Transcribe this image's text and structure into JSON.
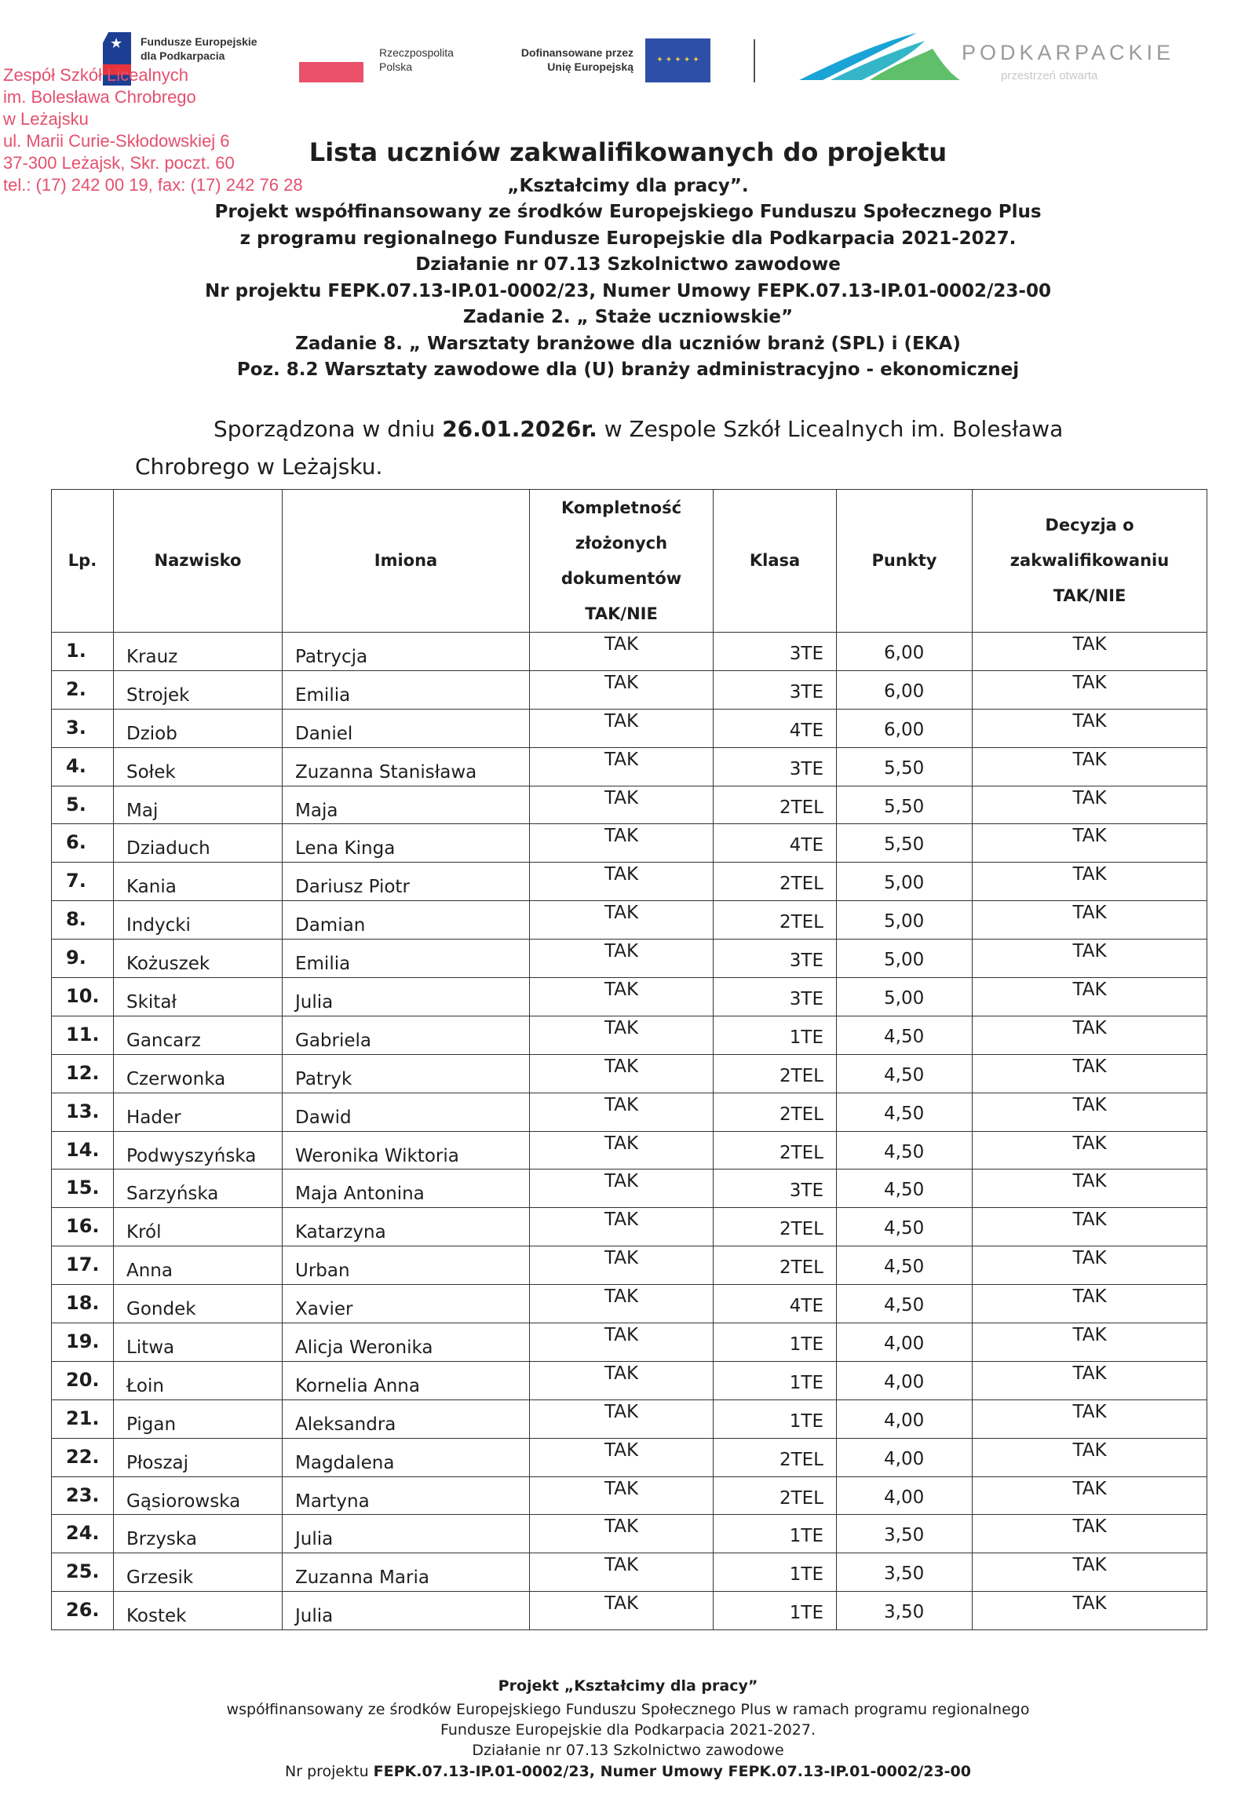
{
  "logos": {
    "fe_line1": "Fundusze Europejskie",
    "fe_line2": "dla Podkarpacia",
    "rp_line1": "Rzeczpospolita",
    "rp_line2": "Polska",
    "eu_line1": "Dofinansowane przez",
    "eu_line2": "Unię Europejską",
    "region": "PODKARPACKIE",
    "region_tagline": "przestrzeń otwarta"
  },
  "stamp": [
    "Zespół Szkół Licealnych",
    "im. Bolesława Chrobrego",
    "w Leżajsku",
    "ul. Marii Curie-Skłodowskiej 6",
    "37-300 Leżajsk, Skr. poczt. 60",
    "tel.: (17) 242 00 19, fax: (17) 242 76 28"
  ],
  "header": {
    "title": "Lista uczniów zakwalifikowanych do projektu",
    "lines": [
      "„Kształcimy dla pracy”.",
      "Projekt współfinansowany ze środków Europejskiego Funduszu Społecznego Plus",
      "z programu regionalnego Fundusze Europejskie dla Podkarpacia 2021-2027.",
      "Działanie nr 07.13 Szkolnictwo zawodowe",
      "Nr projektu  FEPK.07.13-IP.01-0002/23, Numer Umowy FEPK.07.13-IP.01-0002/23-00",
      "Zadanie 2. „ Staże uczniowskie”",
      "Zadanie 8. „ Warsztaty branżowe dla uczniów branż (SPL) i (EKA)",
      "Poz. 8.2 Warsztaty zawodowe dla (U) branży administracyjno - ekonomicznej"
    ]
  },
  "prepared": {
    "prefix": "Sporządzona w dniu ",
    "date": "26.01.2026r.",
    "suffix": " w Zespole Szkół Licealnych im. Bolesława",
    "line2": "Chrobrego w Leżajsku."
  },
  "table": {
    "columns": [
      "Lp.",
      "Nazwisko",
      "Imiona",
      "Kompletność złożonych dokumentów TAK/NIE",
      "Klasa",
      "Punkty",
      "Decyzja o zakwalifikowaniu TAK/NIE"
    ],
    "rows": [
      [
        "1.",
        "Krauz",
        "Patrycja",
        "TAK",
        "3TE",
        "6,00",
        "TAK"
      ],
      [
        "2.",
        "Strojek",
        "Emilia",
        "TAK",
        "3TE",
        "6,00",
        "TAK"
      ],
      [
        "3.",
        "Dziob",
        "Daniel",
        "TAK",
        "4TE",
        "6,00",
        "TAK"
      ],
      [
        "4.",
        "Sołek",
        "Zuzanna Stanisława",
        "TAK",
        "3TE",
        "5,50",
        "TAK"
      ],
      [
        "5.",
        "Maj",
        "Maja",
        "TAK",
        "2TEL",
        "5,50",
        "TAK"
      ],
      [
        "6.",
        "Dziaduch",
        "Lena Kinga",
        "TAK",
        "4TE",
        "5,50",
        "TAK"
      ],
      [
        "7.",
        "Kania",
        "Dariusz Piotr",
        "TAK",
        "2TEL",
        "5,00",
        "TAK"
      ],
      [
        "8.",
        "Indycki",
        "Damian",
        "TAK",
        "2TEL",
        "5,00",
        "TAK"
      ],
      [
        "9.",
        "Kożuszek",
        "Emilia",
        "TAK",
        "3TE",
        "5,00",
        "TAK"
      ],
      [
        "10.",
        "Skitał",
        "Julia",
        "TAK",
        "3TE",
        "5,00",
        "TAK"
      ],
      [
        "11.",
        "Gancarz",
        "Gabriela",
        "TAK",
        "1TE",
        "4,50",
        "TAK"
      ],
      [
        "12.",
        "Czerwonka",
        "Patryk",
        "TAK",
        "2TEL",
        "4,50",
        "TAK"
      ],
      [
        "13.",
        "Hader",
        "Dawid",
        "TAK",
        "2TEL",
        "4,50",
        "TAK"
      ],
      [
        "14.",
        "Podwyszyńska",
        "Weronika Wiktoria",
        "TAK",
        "2TEL",
        "4,50",
        "TAK"
      ],
      [
        "15.",
        "Sarzyńska",
        "Maja Antonina",
        "TAK",
        "3TE",
        "4,50",
        "TAK"
      ],
      [
        "16.",
        "Król",
        "Katarzyna",
        "TAK",
        "2TEL",
        "4,50",
        "TAK"
      ],
      [
        "17.",
        "Anna",
        "Urban",
        "TAK",
        "2TEL",
        "4,50",
        "TAK"
      ],
      [
        "18.",
        "Gondek",
        "Xavier",
        "TAK",
        "4TE",
        "4,50",
        "TAK"
      ],
      [
        "19.",
        "Litwa",
        "Alicja Weronika",
        "TAK",
        "1TE",
        "4,00",
        "TAK"
      ],
      [
        "20.",
        "Łoin",
        "Kornelia Anna",
        "TAK",
        "1TE",
        "4,00",
        "TAK"
      ],
      [
        "21.",
        "Pigan",
        "Aleksandra",
        "TAK",
        "1TE",
        "4,00",
        "TAK"
      ],
      [
        "22.",
        "Płoszaj",
        "Magdalena",
        "TAK",
        "2TEL",
        "4,00",
        "TAK"
      ],
      [
        "23.",
        "Gąsiorowska",
        "Martyna",
        "TAK",
        "2TEL",
        "4,00",
        "TAK"
      ],
      [
        "24.",
        "Brzyska",
        "Julia",
        "TAK",
        "1TE",
        "3,50",
        "TAK"
      ],
      [
        "25.",
        "Grzesik",
        "Zuzanna Maria",
        "TAK",
        "1TE",
        "3,50",
        "TAK"
      ],
      [
        "26.",
        "Kostek",
        "Julia",
        "TAK",
        "1TE",
        "3,50",
        "TAK"
      ]
    ]
  },
  "footer": {
    "line1": "Projekt „Kształcimy dla pracy”",
    "line2": "współfinansowany ze środków Europejskiego Funduszu Społecznego Plus  w ramach programu regionalnego",
    "line3": "Fundusze Europejskie dla Podkarpacia 2021-2027.",
    "line4": "Działanie nr 07.13 Szkolnictwo zawodowe",
    "line5_prefix": "Nr projektu  ",
    "line5_bold": "FEPK.07.13-IP.01-0002/23, Numer Umowy FEPK.07.13-IP.01-0002/23-00"
  },
  "colors": {
    "stamp": "#e4506e",
    "eu_blue": "#2e4fa8",
    "eu_star": "#f4d03f",
    "region_green": "#5fbf6a",
    "region_blue": "#1aa3d6"
  }
}
